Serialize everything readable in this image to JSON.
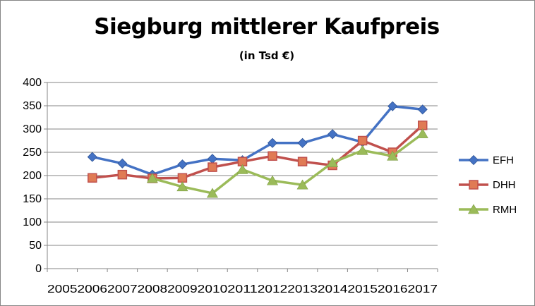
{
  "chart_data": {
    "type": "line",
    "title": "Siegburg mittlerer Kaufpreis",
    "subtitle": "(in Tsd €)",
    "xlabel": "",
    "ylabel": "",
    "categories": [
      "2005",
      "2006",
      "2007",
      "2008",
      "2009",
      "2010",
      "2011",
      "2012",
      "2013",
      "2014",
      "2015",
      "2016",
      "2017"
    ],
    "ylim": [
      0,
      400
    ],
    "yticks": [
      0,
      50,
      100,
      150,
      200,
      250,
      300,
      350,
      400
    ],
    "grid": true,
    "legend_position": "right",
    "series": [
      {
        "name": "EFH",
        "color": "#4472C4",
        "marker": "diamond",
        "values": [
          null,
          240,
          226,
          202,
          224,
          236,
          233,
          270,
          270,
          289,
          272,
          349,
          342
        ]
      },
      {
        "name": "DHH",
        "color": "#C0504D",
        "marker": "square",
        "values": [
          null,
          195,
          202,
          194,
          195,
          218,
          230,
          242,
          230,
          222,
          275,
          250,
          308
        ]
      },
      {
        "name": "RMH",
        "color": "#9BBB59",
        "marker": "triangle",
        "values": [
          null,
          null,
          null,
          194,
          176,
          162,
          213,
          189,
          180,
          228,
          254,
          242,
          290
        ]
      }
    ]
  }
}
